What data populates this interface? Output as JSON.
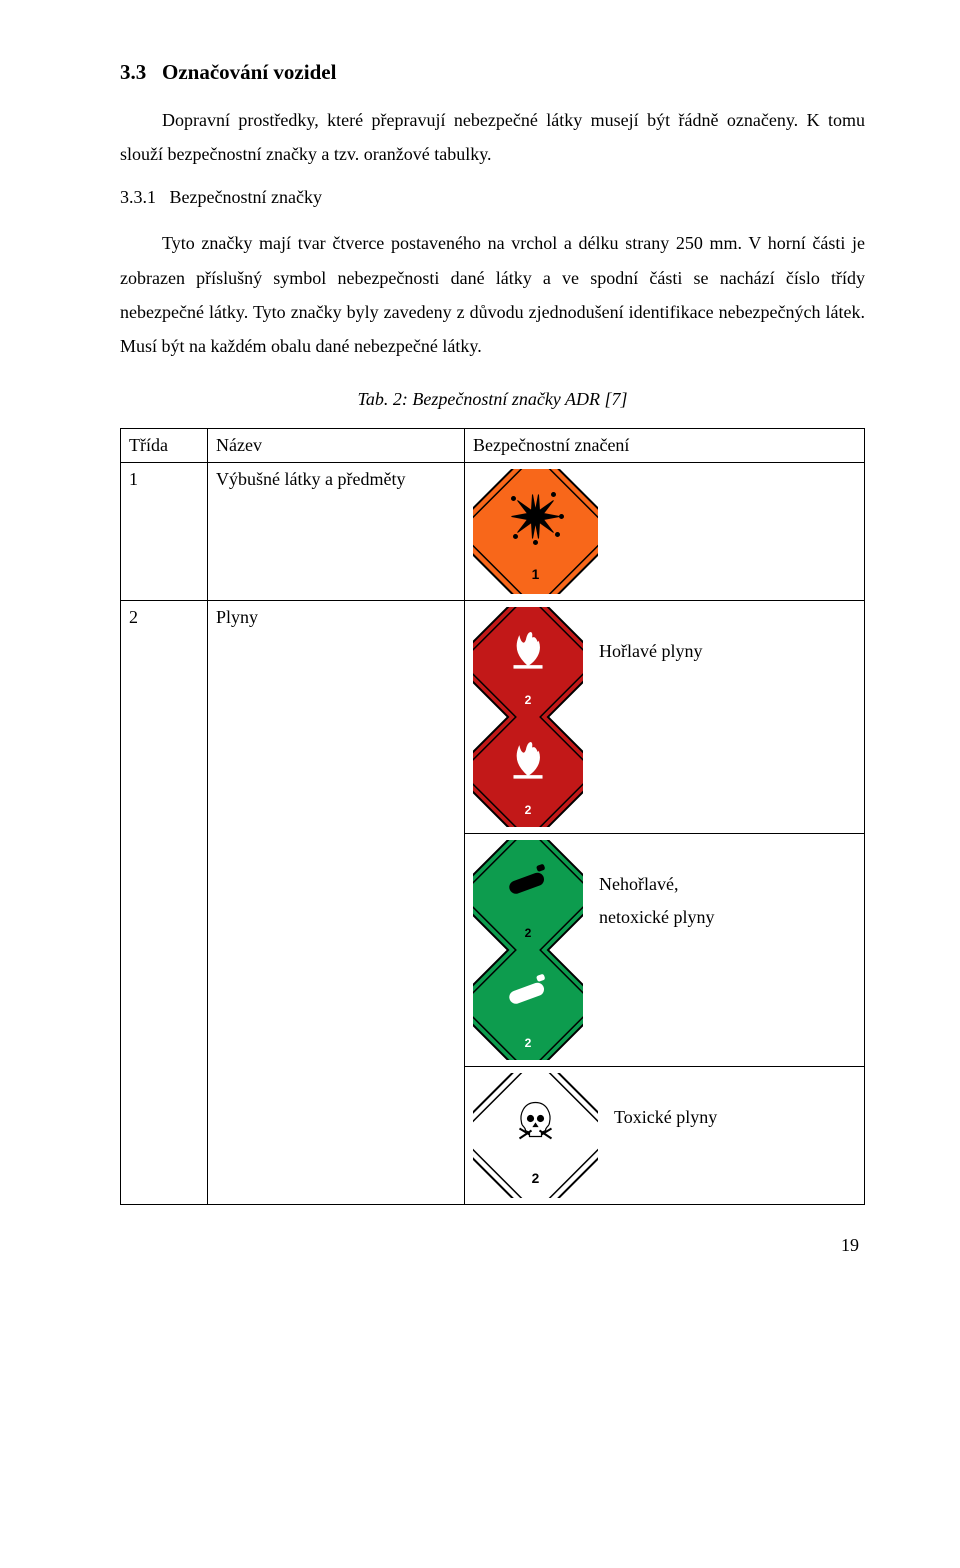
{
  "section": {
    "number": "3.3",
    "title": "Označování vozidel",
    "intro": "Dopravní prostředky, které přepravují nebezpečné látky musejí být řádně označeny. K tomu slouží bezpečnostní značky a tzv. oranžové tabulky."
  },
  "subsection": {
    "number": "3.3.1",
    "title": "Bezpečnostní značky",
    "text": "Tyto značky mají tvar čtverce postaveného na vrchol a délku strany 250 mm. V horní části je zobrazen příslušný symbol nebezpečnosti dané látky a ve spodní části se nachází číslo třídy nebezpečné látky. Tyto značky byly zavedeny z důvodu zjednodušení identifikace nebezpečných látek. Musí být na každém obalu dané nebezpečné látky."
  },
  "table": {
    "caption": "Tab. 2: Bezpečnostní značky ADR [7]",
    "headers": {
      "class": "Třída",
      "name": "Název",
      "sign": "Bezpečnostní značení"
    },
    "rows": [
      {
        "class": "1",
        "name": "Výbušné látky a předměty",
        "signs": [
          {
            "variant": "explosive",
            "label": "",
            "class_num": "1",
            "bg": "#f8671a",
            "border": "#000000",
            "symbol_color": "#000000",
            "svg": "explosion"
          }
        ]
      },
      {
        "class": "2",
        "name": "Plyny",
        "signs": [
          {
            "variant": "flammable-gas-red",
            "label": "Hořlavé plyny",
            "class_num": "2",
            "bg": "#c21818",
            "border": "#000000",
            "symbol_color": "#ffffff",
            "svg": "flame"
          },
          {
            "variant": "flammable-gas-red2",
            "label": "",
            "class_num": "2",
            "bg": "#c21818",
            "border": "#000000",
            "symbol_color": "#ffffff",
            "svg": "flame"
          },
          {
            "variant": "nonflammable-gas-green",
            "label": "Nehořlavé,\nnetoxické plyny",
            "class_num": "2",
            "bg": "#0d9c4e",
            "border": "#000000",
            "symbol_color": "#000000",
            "svg": "cylinder"
          },
          {
            "variant": "nonflammable-gas-green2",
            "label": "",
            "class_num": "2",
            "bg": "#0d9c4e",
            "border": "#000000",
            "symbol_color": "#ffffff",
            "svg": "cylinder"
          },
          {
            "variant": "toxic-gas",
            "label": "Toxické plyny",
            "class_num": "2",
            "bg": "#ffffff",
            "border": "#000000",
            "symbol_color": "#000000",
            "svg": "skull"
          }
        ]
      }
    ]
  },
  "page_number": "19"
}
